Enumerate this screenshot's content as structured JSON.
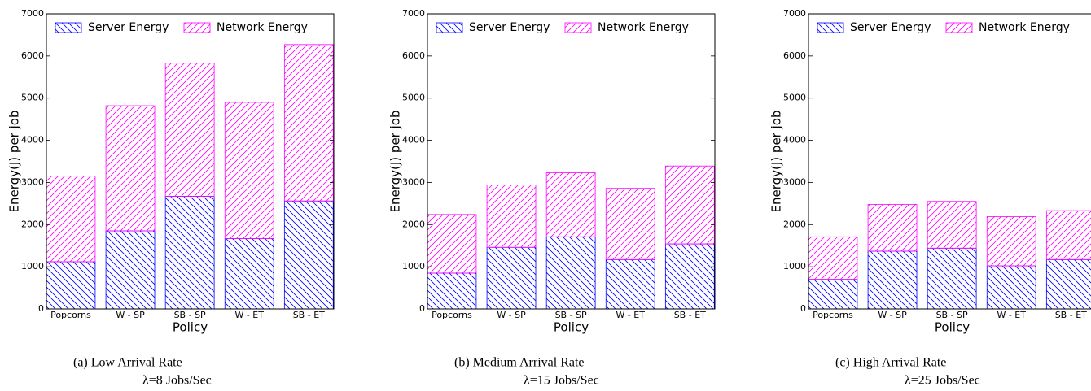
{
  "chart_data": [
    {
      "type": "bar",
      "stacked": true,
      "categories": [
        "Popcorns",
        "W - SP",
        "SB - SP",
        "W - ET",
        "SB - ET"
      ],
      "series": [
        {
          "name": "Server Energy",
          "color": "#0000ff",
          "values": [
            1120,
            1850,
            2670,
            1670,
            2560
          ]
        },
        {
          "name": "Network Energy",
          "color": "#ff00ff",
          "values": [
            2030,
            2970,
            3160,
            3230,
            3710
          ]
        }
      ],
      "ylim": [
        0,
        7000
      ],
      "yticks": [
        0,
        1000,
        2000,
        3000,
        4000,
        5000,
        6000,
        7000
      ],
      "y_label": "Energy(J) per job",
      "x_label": "Policy",
      "legend": "upper left",
      "caption": [
        "(a) Low Arrival Rate",
        "λ=8 Jobs/Sec"
      ]
    },
    {
      "type": "bar",
      "stacked": true,
      "categories": [
        "Popcorns",
        "W - SP",
        "SB - SP",
        "W - ET",
        "SB - ET"
      ],
      "series": [
        {
          "name": "Server Energy",
          "color": "#0000ff",
          "values": [
            850,
            1460,
            1710,
            1170,
            1540
          ]
        },
        {
          "name": "Network Energy",
          "color": "#ff00ff",
          "values": [
            1390,
            1480,
            1520,
            1690,
            1850
          ]
        }
      ],
      "ylim": [
        0,
        7000
      ],
      "yticks": [
        0,
        1000,
        2000,
        3000,
        4000,
        5000,
        6000,
        7000
      ],
      "y_label": "Energy(J) per job",
      "x_label": "Policy",
      "legend": "upper left",
      "caption": [
        "(b) Medium Arrival Rate",
        "λ=15 Jobs/Sec"
      ]
    },
    {
      "type": "bar",
      "stacked": true,
      "categories": [
        "Popcorns",
        "W - SP",
        "SB - SP",
        "W - ET",
        "SB - ET"
      ],
      "series": [
        {
          "name": "Server Energy",
          "color": "#0000ff",
          "values": [
            700,
            1370,
            1440,
            1020,
            1170
          ]
        },
        {
          "name": "Network Energy",
          "color": "#ff00ff",
          "values": [
            1010,
            1110,
            1110,
            1170,
            1160
          ]
        }
      ],
      "ylim": [
        0,
        7000
      ],
      "yticks": [
        0,
        1000,
        2000,
        3000,
        4000,
        5000,
        6000,
        7000
      ],
      "y_label": "Energy(J) per job",
      "x_label": "Policy",
      "legend": "upper left",
      "caption": [
        "(c) High Arrival Rate",
        "λ=25 Jobs/Sec"
      ]
    }
  ]
}
